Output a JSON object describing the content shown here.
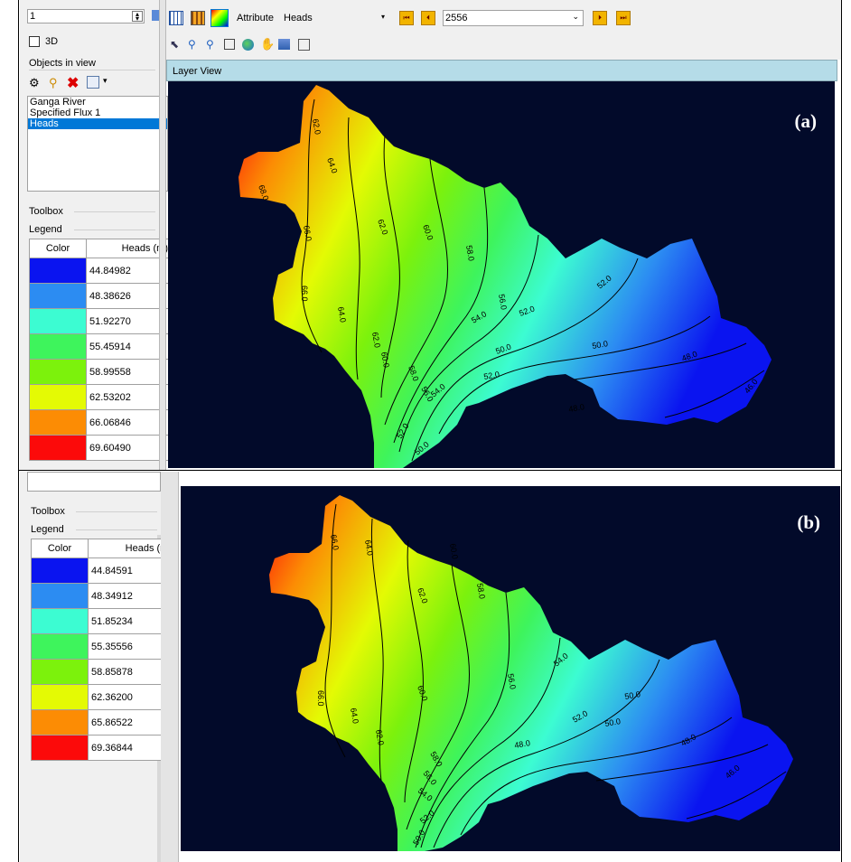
{
  "top_panel": {
    "layer_spinner_value": "1",
    "checkbox_3d_label": "3D",
    "objects_in_view_title": "Objects in view",
    "objects": [
      "Ganga River",
      "Specified Flux 1",
      "Heads"
    ],
    "selected_object": "Heads",
    "toolbox_title": "Toolbox",
    "legend_title": "Legend",
    "legend_header_color": "Color",
    "legend_header_value": "Heads (m)",
    "legend_values": [
      "44.84982",
      "48.38626",
      "51.92270",
      "55.45914",
      "58.99558",
      "62.53202",
      "66.06846",
      "69.60490"
    ],
    "legend_colors": [
      "#0a14f0",
      "#2c8cf2",
      "#3cfcd2",
      "#3ef45c",
      "#7cf20c",
      "#e4fa04",
      "#fc8c04",
      "#fc0a0a"
    ],
    "toolbar": {
      "attribute_label": "Attribute",
      "attribute_value": "Heads",
      "time_value": "2556"
    },
    "layer_view_title": "Layer View",
    "figure_label": "(a)",
    "contour_labels": [
      "62.0",
      "64.0",
      "68.0",
      "66.0",
      "62.0",
      "60.0",
      "58.0",
      "56.0",
      "66.0",
      "64.0",
      "62.0",
      "60.0",
      "58.0",
      "56.0",
      "54.0",
      "52.0",
      "54.0",
      "52.0",
      "50.0",
      "52.0",
      "50.0",
      "48.0",
      "48.0",
      "46.0",
      "52.0",
      "50.0"
    ]
  },
  "bottom_panel": {
    "toolbox_title": "Toolbox",
    "legend_title": "Legend",
    "legend_header_color": "Color",
    "legend_header_value": "Heads (m)",
    "legend_values": [
      "44.84591",
      "48.34912",
      "51.85234",
      "55.35556",
      "58.85878",
      "62.36200",
      "65.86522",
      "69.36844"
    ],
    "legend_colors": [
      "#0a14f0",
      "#2c8cf2",
      "#3cfcd2",
      "#3ef45c",
      "#7cf20c",
      "#e4fa04",
      "#fc8c04",
      "#fc0a0a"
    ],
    "figure_label": "(b)",
    "contour_labels": [
      "66.0",
      "64.0",
      "62.0",
      "60.0",
      "58.0",
      "56.0",
      "66.0",
      "64.0",
      "62.0",
      "60.0",
      "58.0",
      "56.0",
      "54.0",
      "54.0",
      "52.0",
      "50.0",
      "50.0",
      "48.0",
      "48.0",
      "46.0",
      "52.0",
      "50.0"
    ]
  }
}
